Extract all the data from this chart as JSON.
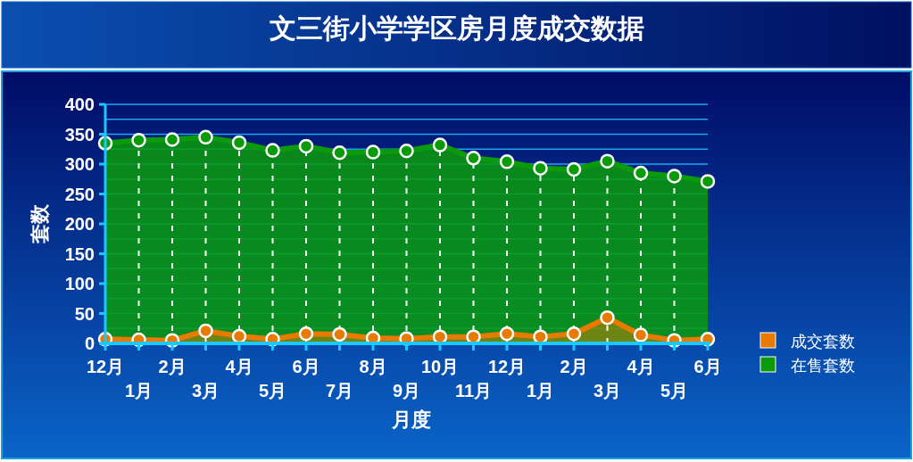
{
  "chart_data": {
    "type": "area",
    "title": "文三街小学学区房月度成交数据",
    "xlabel": "月度",
    "ylabel": "套数",
    "categories": [
      "12月",
      "1月",
      "2月",
      "3月",
      "4月",
      "5月",
      "6月",
      "7月",
      "8月",
      "9月",
      "10月",
      "11月",
      "12月",
      "1月",
      "2月",
      "3月",
      "4月",
      "5月",
      "6月"
    ],
    "series": [
      {
        "name": "成交套数",
        "color": "#e87a00",
        "values": [
          7,
          6,
          5,
          21,
          12,
          7,
          16,
          15,
          9,
          8,
          11,
          11,
          16,
          11,
          16,
          43,
          14,
          5,
          7
        ]
      },
      {
        "name": "在售套数",
        "color": "#0a9a0a",
        "values": [
          335,
          340,
          341,
          345,
          336,
          323,
          330,
          319,
          320,
          322,
          332,
          310,
          304,
          293,
          291,
          305,
          285,
          280,
          271
        ]
      }
    ],
    "ylim": [
      0,
      400
    ],
    "yticks": [
      0,
      {
        "value": 25,
        "label": null
      },
      50,
      {
        "value": 75,
        "label": null
      },
      100,
      {
        "value": 125,
        "label": null
      },
      150,
      {
        "value": 175,
        "label": null
      },
      200,
      {
        "value": 225,
        "label": null
      },
      250,
      {
        "value": 275,
        "label": null
      },
      300,
      {
        "value": 325,
        "label": null
      },
      350,
      {
        "value": 375,
        "label": null
      },
      400
    ],
    "grid": true,
    "legend": "right",
    "marker": "circle"
  }
}
